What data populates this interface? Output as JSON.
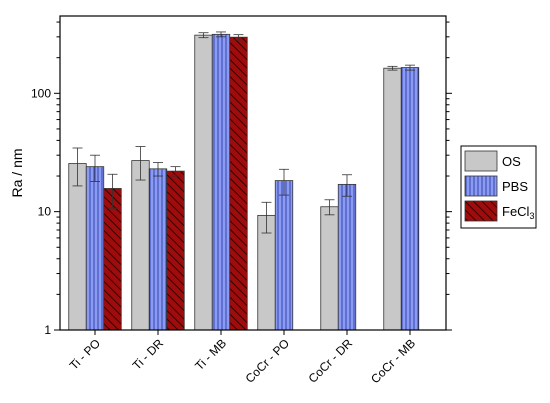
{
  "chart_data": {
    "type": "bar",
    "yscale": "log",
    "ylabel": "Ra / nm",
    "xlabel": "",
    "title": "",
    "ylim": [
      1,
      450
    ],
    "yticks": [
      {
        "value": 1,
        "label": "1"
      },
      {
        "value": 10,
        "label": "10"
      },
      {
        "value": 100,
        "label": "100"
      }
    ],
    "categories": [
      "Ti - PO",
      "Ti - DR",
      "Ti - MB",
      "CoCr - PO",
      "CoCr - DR",
      "CoCr - MB"
    ],
    "legend_position": "right",
    "series": [
      {
        "name": "OS",
        "color": "#c8c8c8",
        "pattern": "none",
        "values": [
          25.5,
          27,
          310,
          9.3,
          11,
          163
        ],
        "errors": [
          9,
          8.5,
          15,
          2.7,
          1.6,
          6
        ]
      },
      {
        "name": "PBS",
        "color": "#8c9bf2",
        "pattern": "vertical-lines",
        "values": [
          24,
          23,
          315,
          18.3,
          17,
          165
        ],
        "errors": [
          6,
          3,
          15,
          4.5,
          3.5,
          8
        ]
      },
      {
        "name": "FeCl3",
        "legend_main": "FeCl",
        "legend_sub": "3",
        "color": "#9e0c0c",
        "pattern": "diagonal-lines",
        "values": [
          15.7,
          22,
          298,
          null,
          null,
          null
        ],
        "errors": [
          5,
          2,
          15,
          null,
          null,
          null
        ]
      }
    ]
  }
}
